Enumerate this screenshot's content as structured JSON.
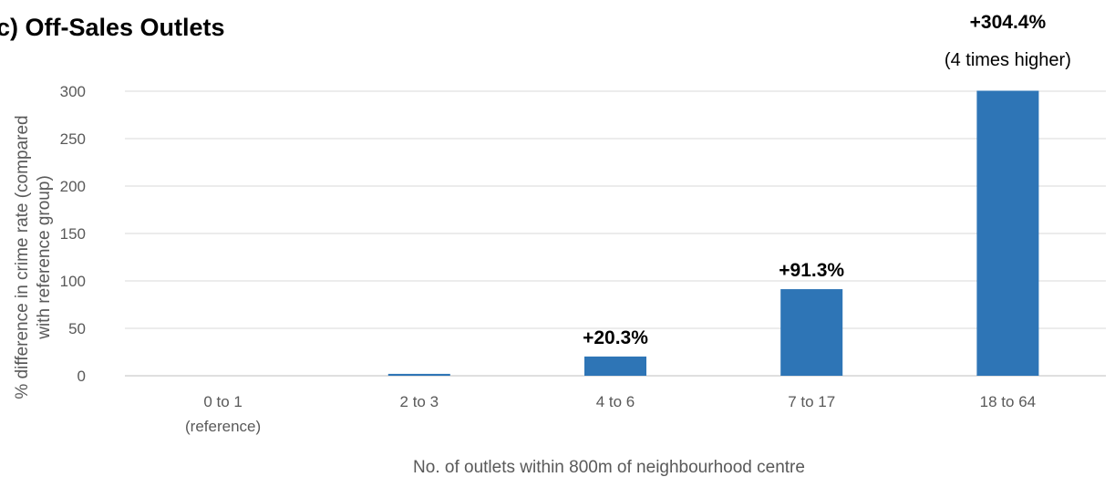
{
  "chart_data": {
    "type": "bar",
    "title": "c) Off-Sales Outlets",
    "xlabel": "No. of outlets within 800m of neighbourhood centre",
    "ylabel_lines": [
      "% difference in crime rate  (compared",
      "with reference group)"
    ],
    "ylim": [
      0,
      300
    ],
    "yticks": [
      0,
      50,
      100,
      150,
      200,
      250,
      300
    ],
    "grid": true,
    "categories": [
      {
        "line1": "0 to 1",
        "line2": "(reference)"
      },
      {
        "line1": "2 to 3",
        "line2": ""
      },
      {
        "line1": "4 to 6",
        "line2": ""
      },
      {
        "line1": "7 to 17",
        "line2": ""
      },
      {
        "line1": "18 to 64",
        "line2": ""
      }
    ],
    "values": [
      0,
      2,
      20.3,
      91.3,
      304.4
    ],
    "data_labels": [
      {
        "text": "",
        "sub": ""
      },
      {
        "text": "",
        "sub": ""
      },
      {
        "text": "+20.3%",
        "sub": ""
      },
      {
        "text": "+91.3%",
        "sub": ""
      },
      {
        "text": "+304.4%",
        "sub": "(4 times higher)"
      }
    ],
    "bar_color": "#2e75b6"
  }
}
